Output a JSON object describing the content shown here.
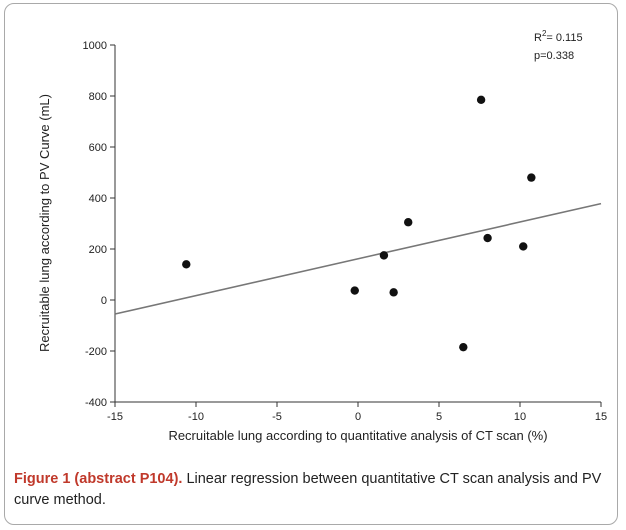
{
  "caption": {
    "label": "Figure 1 (abstract P104).",
    "text": " Linear regression between quantitative CT scan analysis and PV curve method."
  },
  "chart_data": {
    "type": "scatter",
    "xlabel": "Recruitable lung according to quantitative analysis of CT scan (%)",
    "ylabel": "Recruitable lung according to PV Curve (mL)",
    "xlim": [
      -15,
      15
    ],
    "ylim": [
      -400,
      1000
    ],
    "xticks": [
      "-15",
      "-10",
      "-5",
      "0",
      "5",
      "10",
      "15"
    ],
    "yticks": [
      "1000",
      "800",
      "600",
      "400",
      "200",
      "0",
      "-200",
      "-400"
    ],
    "points": [
      {
        "x": -10.6,
        "y": 140
      },
      {
        "x": -0.2,
        "y": 37
      },
      {
        "x": 1.6,
        "y": 175
      },
      {
        "x": 2.2,
        "y": 30
      },
      {
        "x": 3.1,
        "y": 305
      },
      {
        "x": 6.5,
        "y": -185
      },
      {
        "x": 7.6,
        "y": 785
      },
      {
        "x": 8.0,
        "y": 243
      },
      {
        "x": 10.2,
        "y": 210
      },
      {
        "x": 10.7,
        "y": 480
      }
    ],
    "regression_line": {
      "x": [
        -15,
        15
      ],
      "y": [
        -55,
        378
      ]
    },
    "annotations": {
      "r2_label": "R",
      "r2_sup": "2",
      "r2_value": "= 0.115",
      "p_value": "p=0.338"
    },
    "grid": false,
    "legend": "none"
  }
}
